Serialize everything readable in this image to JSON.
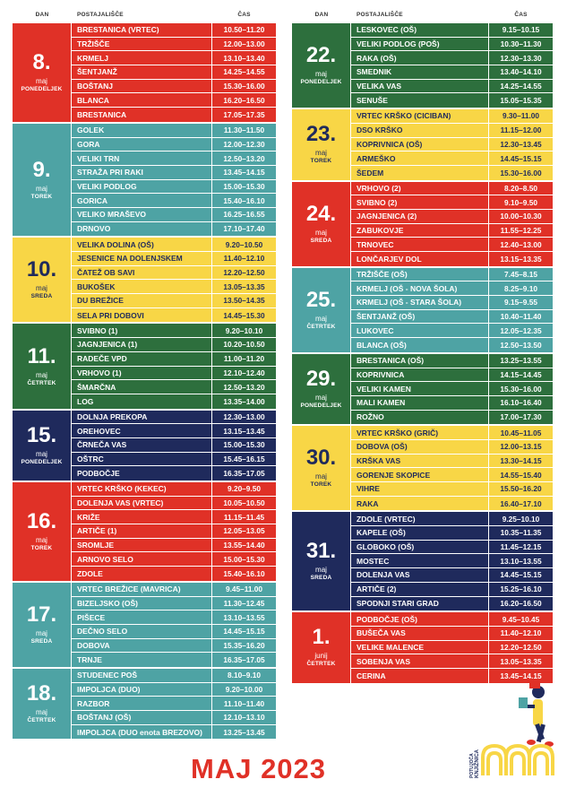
{
  "header": {
    "day": "DAN",
    "stop": "POSTAJALIŠČE",
    "time": "ČAS"
  },
  "colors": {
    "red": "#e03127",
    "teal": "#4ea3a4",
    "yellow": "#f8d646",
    "green": "#2d6f3d",
    "navy": "#1f2a5c"
  },
  "left_groups": [
    {
      "num": "8.",
      "month": "maj",
      "weekday": "PONEDELJEK",
      "color": "red",
      "rows": [
        {
          "stop": "BRESTANICA (VRTEC)",
          "time": "10.50–11.20"
        },
        {
          "stop": "TRŽIŠČE",
          "time": "12.00–13.00"
        },
        {
          "stop": "KRMELJ",
          "time": "13.10–13.40"
        },
        {
          "stop": "ŠENTJANŽ",
          "time": "14.25–14.55"
        },
        {
          "stop": "BOŠTANJ",
          "time": "15.30–16.00"
        },
        {
          "stop": "BLANCA",
          "time": "16.20–16.50"
        },
        {
          "stop": "BRESTANICA",
          "time": "17.05–17.35"
        }
      ]
    },
    {
      "num": "9.",
      "month": "maj",
      "weekday": "TOREK",
      "color": "teal",
      "rows": [
        {
          "stop": "GOLEK",
          "time": "11.30–11.50"
        },
        {
          "stop": "GORA",
          "time": "12.00–12.30"
        },
        {
          "stop": "VELIKI TRN",
          "time": "12.50–13.20"
        },
        {
          "stop": "STRAŽA PRI RAKI",
          "time": "13.45–14.15"
        },
        {
          "stop": "VELIKI PODLOG",
          "time": "15.00–15.30"
        },
        {
          "stop": "GORICA",
          "time": "15.40–16.10"
        },
        {
          "stop": "VELIKO MRAŠEVO",
          "time": "16.25–16.55"
        },
        {
          "stop": "DRNOVO",
          "time": "17.10–17.40"
        }
      ]
    },
    {
      "num": "10.",
      "month": "maj",
      "weekday": "SREDA",
      "color": "yellow",
      "rows": [
        {
          "stop": "VELIKA DOLINA (OŠ)",
          "time": "9.20–10.50"
        },
        {
          "stop": "JESENICE NA DOLENJSKEM",
          "time": "11.40–12.10"
        },
        {
          "stop": "ČATEŽ OB SAVI",
          "time": "12.20–12.50"
        },
        {
          "stop": "BUKOŠEK",
          "time": "13.05–13.35"
        },
        {
          "stop": "DU BREŽICE",
          "time": "13.50–14.35"
        },
        {
          "stop": "SELA PRI DOBOVI",
          "time": "14.45–15.30"
        }
      ]
    },
    {
      "num": "11.",
      "month": "maj",
      "weekday": "ČETRTEK",
      "color": "green",
      "rows": [
        {
          "stop": "SVIBNO (1)",
          "time": "9.20–10.10"
        },
        {
          "stop": "JAGNJENICA (1)",
          "time": "10.20–10.50"
        },
        {
          "stop": "RADEČE VPD",
          "time": "11.00–11.20"
        },
        {
          "stop": "VRHOVO (1)",
          "time": "12.10–12.40"
        },
        {
          "stop": "ŠMARČNA",
          "time": "12.50–13.20"
        },
        {
          "stop": "LOG",
          "time": "13.35–14.00"
        }
      ]
    },
    {
      "num": "15.",
      "month": "maj",
      "weekday": "PONEDELJEK",
      "color": "navy",
      "rows": [
        {
          "stop": "DOLNJA PREKOPA",
          "time": "12.30–13.00"
        },
        {
          "stop": "OREHOVEC",
          "time": "13.15–13.45"
        },
        {
          "stop": "ČRNEČA VAS",
          "time": "15.00–15.30"
        },
        {
          "stop": "OŠTRC",
          "time": "15.45–16.15"
        },
        {
          "stop": "PODBOČJE",
          "time": "16.35–17.05"
        }
      ]
    },
    {
      "num": "16.",
      "month": "maj",
      "weekday": "TOREK",
      "color": "red",
      "rows": [
        {
          "stop": "VRTEC KRŠKO (KEKEC)",
          "time": "9.20–9.50"
        },
        {
          "stop": "DOLENJA VAS (VRTEC)",
          "time": "10.05–10.50"
        },
        {
          "stop": "KRIŽE",
          "time": "11.15–11.45"
        },
        {
          "stop": "ARTIČE (1)",
          "time": "12.05–13.05"
        },
        {
          "stop": "SROMLJE",
          "time": "13.55–14.40"
        },
        {
          "stop": "ARNOVO SELO",
          "time": "15.00–15.30"
        },
        {
          "stop": "ZDOLE",
          "time": "15.40–16.10"
        }
      ]
    },
    {
      "num": "17.",
      "month": "maj",
      "weekday": "SREDA",
      "color": "teal",
      "rows": [
        {
          "stop": "VRTEC BREŽICE (MAVRICA)",
          "time": "9.45–11.00"
        },
        {
          "stop": "BIZELJSKO (OŠ)",
          "time": "11.30–12.45"
        },
        {
          "stop": "PIŠECE",
          "time": "13.10–13.55"
        },
        {
          "stop": "DEČNO SELO",
          "time": "14.45–15.15"
        },
        {
          "stop": "DOBOVA",
          "time": "15.35–16.20"
        },
        {
          "stop": "TRNJE",
          "time": "16.35–17.05"
        }
      ]
    },
    {
      "num": "18.",
      "month": "maj",
      "weekday": "ČETRTEK",
      "color": "teal",
      "rows": [
        {
          "stop": "STUDENEC POŠ",
          "time": "8.10–9.10"
        },
        {
          "stop": "IMPOLJCA (DUO)",
          "time": "9.20–10.00"
        },
        {
          "stop": "RAZBOR",
          "time": "11.10–11.40"
        },
        {
          "stop": "BOŠTANJ (OŠ)",
          "time": "12.10–13.10"
        },
        {
          "stop": "IMPOLJCA (DUO enota BREZOVO)",
          "time": "13.25–13.45"
        }
      ]
    }
  ],
  "right_groups": [
    {
      "num": "22.",
      "month": "maj",
      "weekday": "PONEDELJEK",
      "color": "green",
      "rows": [
        {
          "stop": "LESKOVEC (OŠ)",
          "time": "9.15–10.15"
        },
        {
          "stop": "VELIKI PODLOG (POŠ)",
          "time": "10.30–11.30"
        },
        {
          "stop": "RAKA (OŠ)",
          "time": "12.30–13.30"
        },
        {
          "stop": "SMEDNIK",
          "time": "13.40–14.10"
        },
        {
          "stop": "VELIKA VAS",
          "time": "14.25–14.55"
        },
        {
          "stop": "SENUŠE",
          "time": "15.05–15.35"
        }
      ]
    },
    {
      "num": "23.",
      "month": "maj",
      "weekday": "TOREK",
      "color": "yellow",
      "rows": [
        {
          "stop": "VRTEC KRŠKO (CICIBAN)",
          "time": "9.30–11.00"
        },
        {
          "stop": "DSO KRŠKO",
          "time": "11.15–12.00"
        },
        {
          "stop": "KOPRIVNICA (OŠ)",
          "time": "12.30–13.45"
        },
        {
          "stop": "ARMEŠKO",
          "time": "14.45–15.15"
        },
        {
          "stop": "ŠEDEM",
          "time": "15.30–16.00"
        }
      ]
    },
    {
      "num": "24.",
      "month": "maj",
      "weekday": "SREDA",
      "color": "red",
      "rows": [
        {
          "stop": "VRHOVO (2)",
          "time": "8.20–8.50"
        },
        {
          "stop": "SVIBNO (2)",
          "time": "9.10–9.50"
        },
        {
          "stop": "JAGNJENICA (2)",
          "time": "10.00–10.30"
        },
        {
          "stop": "ZABUKOVJE",
          "time": "11.55–12.25"
        },
        {
          "stop": "TRNOVEC",
          "time": "12.40–13.00"
        },
        {
          "stop": "LONČARJEV DOL",
          "time": "13.15–13.35"
        }
      ]
    },
    {
      "num": "25.",
      "month": "maj",
      "weekday": "ČETRTEK",
      "color": "teal",
      "rows": [
        {
          "stop": "TRŽIŠČE (OŠ)",
          "time": "7.45–8.15"
        },
        {
          "stop": "KRMELJ (OŠ - NOVA ŠOLA)",
          "time": "8.25–9.10"
        },
        {
          "stop": "KRMELJ (OŠ - STARA ŠOLA)",
          "time": "9.15–9.55"
        },
        {
          "stop": "ŠENTJANŽ (OŠ)",
          "time": "10.40–11.40"
        },
        {
          "stop": "LUKOVEC",
          "time": "12.05–12.35"
        },
        {
          "stop": "BLANCA (OŠ)",
          "time": "12.50–13.50"
        }
      ]
    },
    {
      "num": "29.",
      "month": "maj",
      "weekday": "PONEDELJEK",
      "color": "green",
      "rows": [
        {
          "stop": "BRESTANICA (OŠ)",
          "time": "13.25–13.55"
        },
        {
          "stop": "KOPRIVNICA",
          "time": "14.15–14.45"
        },
        {
          "stop": "VELIKI KAMEN",
          "time": "15.30–16.00"
        },
        {
          "stop": "MALI KAMEN",
          "time": "16.10–16.40"
        },
        {
          "stop": "ROŽNO",
          "time": "17.00–17.30"
        }
      ]
    },
    {
      "num": "30.",
      "month": "maj",
      "weekday": "TOREK",
      "color": "yellow",
      "rows": [
        {
          "stop": "VRTEC KRŠKO (GRIČ)",
          "time": "10.45–11.05"
        },
        {
          "stop": "DOBOVA (OŠ)",
          "time": "12.00–13.15"
        },
        {
          "stop": "KRŠKA VAS",
          "time": "13.30–14.15"
        },
        {
          "stop": "GORENJE SKOPICE",
          "time": "14.55–15.40"
        },
        {
          "stop": "VIHRE",
          "time": "15.50–16.20"
        },
        {
          "stop": "RAKA",
          "time": "16.40–17.10"
        }
      ]
    },
    {
      "num": "31.",
      "month": "maj",
      "weekday": "SREDA",
      "color": "navy",
      "rows": [
        {
          "stop": "ZDOLE (VRTEC)",
          "time": "9.25–10.10"
        },
        {
          "stop": "KAPELE  (OŠ)",
          "time": "10.35–11.35"
        },
        {
          "stop": "GLOBOKO (OŠ)",
          "time": "11.45–12.15"
        },
        {
          "stop": "MOSTEC",
          "time": "13.10–13.55"
        },
        {
          "stop": "DOLENJA VAS",
          "time": "14.45–15.15"
        },
        {
          "stop": "ARTIČE (2)",
          "time": "15.25–16.10"
        },
        {
          "stop": "SPODNJI STARI GRAD",
          "time": "16.20–16.50"
        }
      ]
    },
    {
      "num": "1.",
      "month": "junij",
      "weekday": "ČETRTEK",
      "color": "red",
      "rows": [
        {
          "stop": "PODBOČJE (OŠ)",
          "time": "9.45–10.45"
        },
        {
          "stop": "BUŠEČA VAS",
          "time": "11.40–12.10"
        },
        {
          "stop": "VELIKE MALENCE",
          "time": "12.20–12.50"
        },
        {
          "stop": "SOBENJA VAS",
          "time": "13.05–13.35"
        },
        {
          "stop": "CERINA",
          "time": "13.45–14.15"
        }
      ]
    }
  ],
  "footer_title": "MAJ 2023",
  "logo": {
    "text": "KNJIŽNICA",
    "sub": "POTUJOČA"
  }
}
